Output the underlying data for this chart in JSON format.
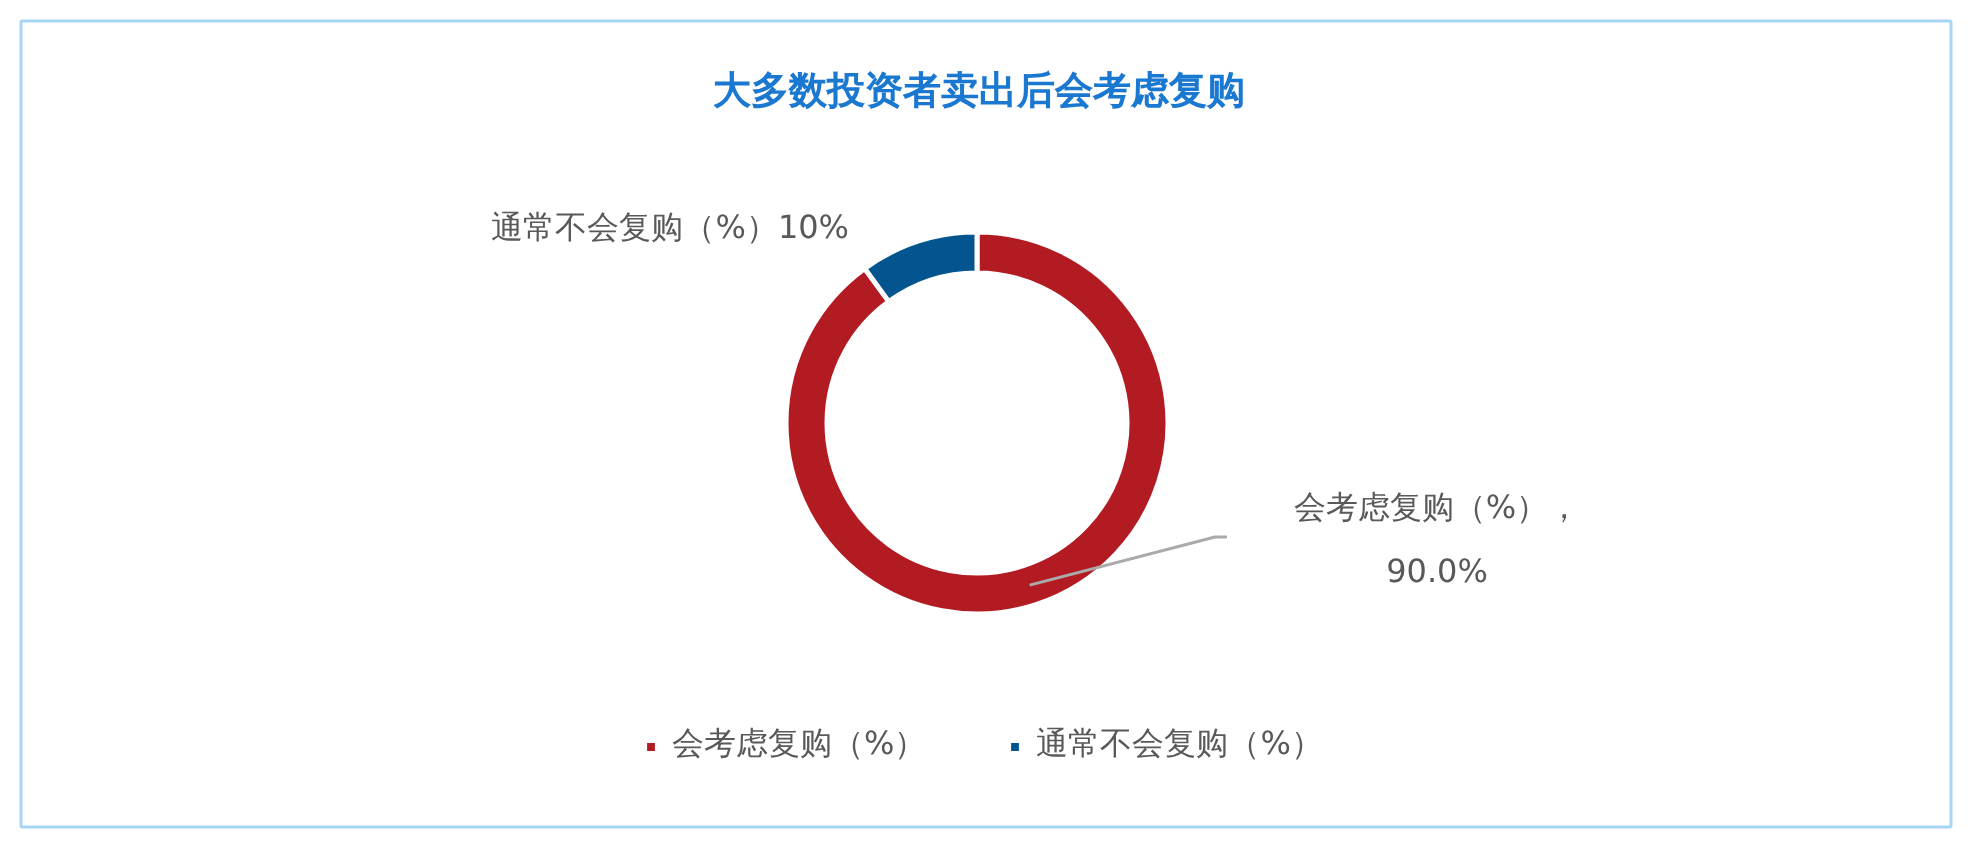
{
  "chart_data": {
    "type": "donut",
    "title": "大多数投资者卖出后会考虑复购",
    "categories": [
      "会考虑复购（%）",
      "通常不会复购（%）"
    ],
    "values": [
      90,
      10
    ],
    "colors": [
      "#b31b23",
      "#03558f"
    ],
    "value_labels": [
      "会考虑复购（%），\n90.0%",
      "通常不会复购（%）10%"
    ],
    "legend": "bottom"
  }
}
